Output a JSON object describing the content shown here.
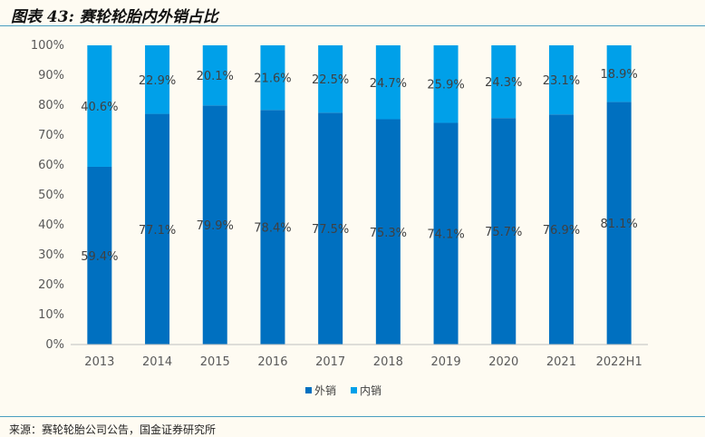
{
  "title": "图表 43: 赛轮轮胎内外销占比",
  "source": "来源：赛轮轮胎公司公告，国金证券研究所",
  "chart_data": {
    "type": "bar",
    "stacked": true,
    "percent_stacked": true,
    "categories": [
      "2013",
      "2014",
      "2015",
      "2016",
      "2017",
      "2018",
      "2019",
      "2020",
      "2021",
      "2022H1"
    ],
    "series": [
      {
        "name": "外销",
        "color": "#0070C0",
        "values": [
          59.4,
          77.1,
          79.9,
          78.4,
          77.5,
          75.3,
          74.1,
          75.7,
          76.9,
          81.1
        ],
        "labels": [
          "59.4%",
          "77.1%",
          "79.9%",
          "78.4%",
          "77.5%",
          "75.3%",
          "74.1%",
          "75.7%",
          "76.9%",
          "81.1%"
        ]
      },
      {
        "name": "内销",
        "color": "#00A0E9",
        "values": [
          40.6,
          22.9,
          20.1,
          21.6,
          22.5,
          24.7,
          25.9,
          24.3,
          23.1,
          18.9
        ],
        "labels": [
          "40.6%",
          "22.9%",
          "20.1%",
          "21.6%",
          "22.5%",
          "24.7%",
          "25.9%",
          "24.3%",
          "23.1%",
          "18.9%"
        ]
      }
    ],
    "yticks": [
      "0%",
      "10%",
      "20%",
      "30%",
      "40%",
      "50%",
      "60%",
      "70%",
      "80%",
      "90%",
      "100%"
    ],
    "ylim": [
      0,
      100
    ],
    "legend": "bottom-center",
    "grid": false
  }
}
